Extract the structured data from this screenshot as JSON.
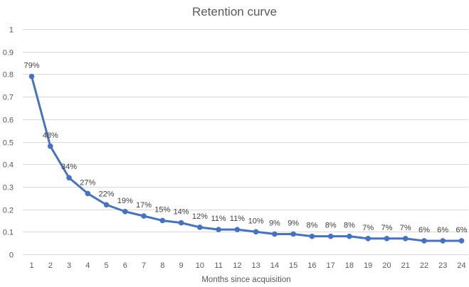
{
  "chart_data": {
    "type": "line",
    "title": "Retention curve",
    "xlabel": "Months since acquisition",
    "ylabel": "",
    "x": [
      1,
      2,
      3,
      4,
      5,
      6,
      7,
      8,
      9,
      10,
      11,
      12,
      13,
      14,
      15,
      16,
      17,
      18,
      19,
      20,
      21,
      22,
      23,
      24
    ],
    "series": [
      {
        "values": [
          0.79,
          0.48,
          0.34,
          0.27,
          0.22,
          0.19,
          0.17,
          0.15,
          0.14,
          0.12,
          0.11,
          0.11,
          0.1,
          0.09,
          0.09,
          0.08,
          0.08,
          0.08,
          0.07,
          0.07,
          0.07,
          0.06,
          0.06,
          0.06
        ],
        "labels": [
          "79%",
          "48%",
          "34%",
          "27%",
          "22%",
          "19%",
          "17%",
          "15%",
          "14%",
          "12%",
          "11%",
          "11%",
          "10%",
          "9%",
          "9%",
          "8%",
          "8%",
          "8%",
          "7%",
          "7%",
          "7%",
          "6%",
          "6%",
          "6%"
        ],
        "color": "#4472c4"
      }
    ],
    "y_ticks": [
      "0",
      "0.1",
      "0.2",
      "0.3",
      "0.4",
      "0.5",
      "0.6",
      "0.7",
      "0.8",
      "0.9",
      "1"
    ],
    "ylim": [
      0,
      1
    ],
    "grid": true,
    "legend": "none"
  }
}
